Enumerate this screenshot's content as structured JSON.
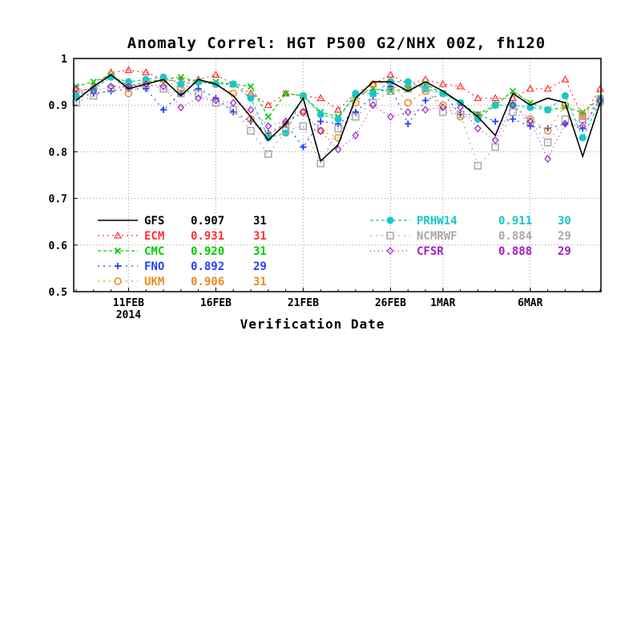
{
  "chart_data": {
    "type": "line",
    "title": "Anomaly Correl: HGT P500 G2/NHX 00Z, fh120",
    "xlabel": "Verification Date",
    "ylabel": "",
    "ylim": [
      0.5,
      1.0
    ],
    "yticks": [
      "0.5",
      "0.6",
      "0.7",
      "0.8",
      "0.9",
      "1"
    ],
    "xticks": [
      {
        "day": 3,
        "label": "11FEB",
        "sublabel": "2014"
      },
      {
        "day": 8,
        "label": "16FEB",
        "sublabel": ""
      },
      {
        "day": 13,
        "label": "21FEB",
        "sublabel": ""
      },
      {
        "day": 18,
        "label": "26FEB",
        "sublabel": ""
      },
      {
        "day": 21,
        "label": "1MAR",
        "sublabel": ""
      },
      {
        "day": 26,
        "label": "6MAR",
        "sublabel": ""
      }
    ],
    "x_first_date": "8FEB2014",
    "x_last_date": "10MAR2014",
    "grid": true,
    "series": [
      {
        "name": "GFS",
        "mean": "0.907",
        "count": "31",
        "color": "#000000",
        "dash": "",
        "marker": "none",
        "values": [
          0.91,
          0.94,
          0.965,
          0.935,
          0.945,
          0.955,
          0.92,
          0.955,
          0.945,
          0.92,
          0.875,
          0.825,
          0.86,
          0.915,
          0.78,
          0.815,
          0.915,
          0.95,
          0.95,
          0.93,
          0.95,
          0.93,
          0.905,
          0.875,
          0.835,
          0.925,
          0.9,
          0.915,
          0.905,
          0.79,
          0.905
        ]
      },
      {
        "name": "ECM",
        "mean": "0.931",
        "count": "31",
        "color": "#ff3030",
        "dash": "2,4",
        "marker": "triangle",
        "values": [
          0.925,
          0.94,
          0.97,
          0.975,
          0.97,
          0.955,
          0.95,
          0.955,
          0.965,
          0.945,
          0.925,
          0.9,
          0.925,
          0.92,
          0.915,
          0.89,
          0.925,
          0.945,
          0.965,
          0.945,
          0.955,
          0.945,
          0.94,
          0.915,
          0.915,
          0.915,
          0.935,
          0.935,
          0.955,
          0.875,
          0.935
        ]
      },
      {
        "name": "CMC",
        "mean": "0.920",
        "count": "31",
        "color": "#00cc00",
        "dash": "4,3",
        "marker": "x",
        "values": [
          0.94,
          0.95,
          0.965,
          0.94,
          0.95,
          0.955,
          0.96,
          0.95,
          0.95,
          0.945,
          0.94,
          0.875,
          0.925,
          0.92,
          0.885,
          0.875,
          0.92,
          0.935,
          0.93,
          0.935,
          0.945,
          0.925,
          0.905,
          0.88,
          0.9,
          0.93,
          0.905,
          0.89,
          0.895,
          0.885,
          0.915
        ]
      },
      {
        "name": "FNO",
        "mean": "0.892",
        "count": "29",
        "color": "#1f40ff",
        "dash": "2,5",
        "marker": "plus",
        "values": [
          0.915,
          0.925,
          0.93,
          0.935,
          0.935,
          0.89,
          0.925,
          0.935,
          0.915,
          0.885,
          0.865,
          0.84,
          0.86,
          0.81,
          0.865,
          0.86,
          0.885,
          0.92,
          0.94,
          0.86,
          0.91,
          0.925,
          0.88,
          0.88,
          0.865,
          0.87,
          0.855,
          0.85,
          0.86,
          0.85,
          0.915
        ]
      },
      {
        "name": "UKM",
        "mean": "0.906",
        "count": "31",
        "color": "#ee8a20",
        "dash": "2,5",
        "marker": "circle",
        "values": [
          0.93,
          0.935,
          0.965,
          0.925,
          0.945,
          0.955,
          0.935,
          0.95,
          0.945,
          0.925,
          0.87,
          0.835,
          0.86,
          0.885,
          0.845,
          0.83,
          0.905,
          0.945,
          0.95,
          0.905,
          0.93,
          0.9,
          0.875,
          0.875,
          0.9,
          0.9,
          0.87,
          0.845,
          0.9,
          0.88,
          0.905
        ]
      },
      {
        "name": "PRHW14",
        "mean": "0.911",
        "count": "30",
        "color": "#16c8c8",
        "dash": "4,3",
        "marker": "dot",
        "values": [
          0.92,
          0.935,
          0.96,
          0.95,
          0.955,
          0.96,
          0.945,
          0.95,
          0.945,
          0.945,
          0.915,
          0.83,
          0.84,
          0.92,
          0.88,
          0.87,
          0.925,
          0.925,
          0.95,
          0.95,
          0.935,
          0.925,
          0.905,
          0.87,
          0.9,
          0.9,
          0.895,
          0.89,
          0.92,
          0.83,
          0.91
        ]
      },
      {
        "name": "NCMRWF",
        "mean": "0.884",
        "count": "29",
        "color": "#a8a8a8",
        "dash": "2,5",
        "marker": "square",
        "values": [
          0.905,
          0.92,
          0.935,
          0.94,
          0.945,
          0.935,
          0.925,
          0.925,
          0.905,
          0.89,
          0.845,
          0.795,
          0.845,
          0.855,
          0.775,
          0.85,
          0.875,
          0.905,
          0.93,
          0.935,
          0.94,
          0.885,
          0.88,
          0.77,
          0.81,
          0.885,
          0.865,
          0.82,
          0.87,
          0.87,
          0.91
        ]
      },
      {
        "name": "CFSR",
        "mean": "0.888",
        "count": "29",
        "color": "#a020c0",
        "dash": "1,4",
        "marker": "diamond",
        "values": [
          0.935,
          0.93,
          0.94,
          0.94,
          0.945,
          0.94,
          0.895,
          0.915,
          0.91,
          0.905,
          0.89,
          0.855,
          0.865,
          0.885,
          0.845,
          0.805,
          0.835,
          0.9,
          0.875,
          0.885,
          0.89,
          0.895,
          0.895,
          0.85,
          0.825,
          0.9,
          0.865,
          0.785,
          0.86,
          0.855,
          0.91
        ]
      }
    ]
  }
}
